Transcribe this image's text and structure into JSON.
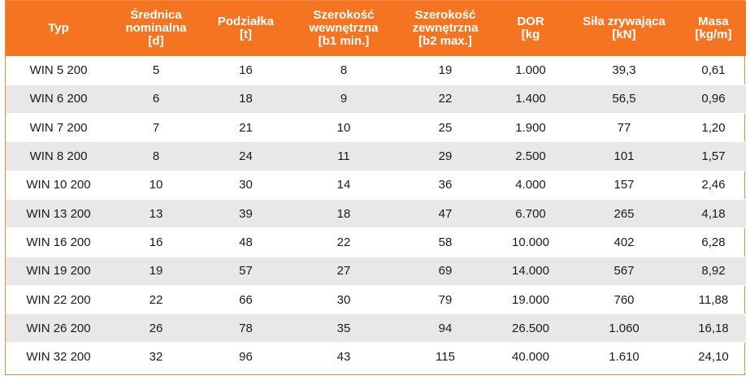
{
  "table": {
    "headers": [
      "Typ",
      "Średnica\nnominalna\n[d]",
      "Podziałka\n[t]",
      "Szerokość\nwewnętrzna\n[b1 min.]",
      "Szerokość\nzewnętrzna\n[b2 max.]",
      "DOR\n[kg",
      "Siła zrywająca\n[kN]",
      "Masa\n[kg/m]"
    ],
    "rows": [
      [
        "WIN 5 200",
        "5",
        "16",
        "8",
        "19",
        "1.000",
        "39,3",
        "0,61"
      ],
      [
        "WIN 6 200",
        "6",
        "18",
        "9",
        "22",
        "1.400",
        "56,5",
        "0,96"
      ],
      [
        "WIN 7 200",
        "7",
        "21",
        "10",
        "25",
        "1.900",
        "77",
        "1,20"
      ],
      [
        "WIN 8 200",
        "8",
        "24",
        "11",
        "29",
        "2.500",
        "101",
        "1,57"
      ],
      [
        "WIN 10 200",
        "10",
        "30",
        "14",
        "36",
        "4.000",
        "157",
        "2,46"
      ],
      [
        "WIN 13 200",
        "13",
        "39",
        "18",
        "47",
        "6.700",
        "265",
        "4,18"
      ],
      [
        "WIN 16 200",
        "16",
        "48",
        "22",
        "58",
        "10.000",
        "402",
        "6,28"
      ],
      [
        "WIN 19 200",
        "19",
        "57",
        "27",
        "69",
        "14.000",
        "567",
        "8,92"
      ],
      [
        "WIN 22 200",
        "22",
        "66",
        "30",
        "79",
        "19.000",
        "760",
        "11,88"
      ],
      [
        "WIN 26 200",
        "26",
        "78",
        "35",
        "94",
        "26.500",
        "1.060",
        "16,18"
      ],
      [
        "WIN 32 200",
        "32",
        "96",
        "43",
        "115",
        "40.000",
        "1.610",
        "24,10"
      ]
    ]
  },
  "colors": {
    "header_bg": "#f47421",
    "header_text": "#ffffff",
    "stripe_bg": "#e8e8e8",
    "border": "#f28a3f"
  }
}
